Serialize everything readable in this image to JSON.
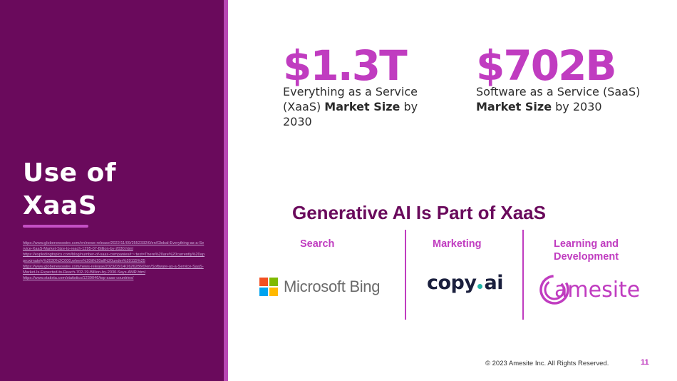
{
  "sidebar": {
    "title_line1": "Use of",
    "title_line2": "XaaS",
    "sources": [
      "https://www.globenewswire.com/en/news-release/2022/11/09/2552332/0/en/Global-Everything-as-a-Service-XaaS-Market-Size-to-reach-1295-07-Billion-by-2030.html",
      "https://explodingtopics.com/blog/number-of-saas-companies#:~:text=There%20are%20currently%20approximately%2030%2C000,where%20it%20all%20under%20115%25",
      "https://www.globenewswire.com/news-release/2023/03/14/2626286/0/en/Software-as-a-Service-SaaS-Market-Is-Expected-to-Reach-702-19-Billion-by-2030-Says-AMR.html",
      "https://www.statista.com/statistics/1239046/top-saas-countries/"
    ]
  },
  "stats": [
    {
      "value": "$1.3T",
      "desc_pre": "Everything as a Service (XaaS) ",
      "desc_bold": "Market Size",
      "desc_post": " by 2030"
    },
    {
      "value": "$702B",
      "desc_pre": "Software as a Service (SaaS) ",
      "desc_bold": "Market Size",
      "desc_post": " by 2030"
    }
  ],
  "ai_section": {
    "heading": "Generative AI Is Part of XaaS",
    "columns": [
      {
        "label": "Search",
        "logo_text": "Microsoft Bing"
      },
      {
        "label": "Marketing",
        "logo_text_a": "copy",
        "logo_text_b": "ai"
      },
      {
        "label": "Learning and Development",
        "logo_text": "amesite"
      }
    ]
  },
  "colors": {
    "panel": "#6a0a5c",
    "accent": "#c03cc0",
    "ms_red": "#f25022",
    "ms_green": "#7fba00",
    "ms_blue": "#00a4ef",
    "ms_yellow": "#ffb900",
    "copy_dot": "#1fb4a6"
  },
  "icons": [
    "microsoft-logo-icon",
    "amesite-logo-icon"
  ],
  "footer": {
    "copyright": "© 2023 Amesite Inc. All Rights Reserved.",
    "page_number": "11"
  }
}
